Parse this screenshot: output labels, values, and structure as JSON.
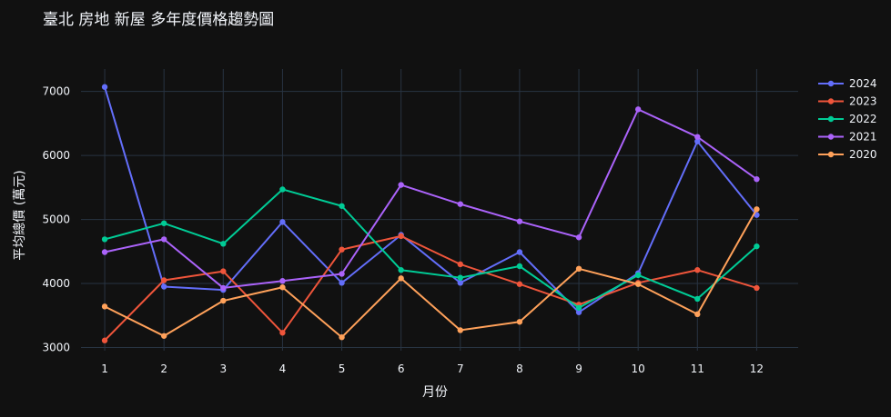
{
  "chart_data": {
    "type": "line",
    "title": "臺北 房地 新屋 多年度價格趨勢圖",
    "xlabel": "月份",
    "ylabel": "平均總價 (萬元)",
    "x": [
      1,
      2,
      3,
      4,
      5,
      6,
      7,
      8,
      9,
      10,
      11,
      12
    ],
    "xlim": [
      0.6,
      12.7
    ],
    "ylim": [
      2950,
      7350
    ],
    "yticks": [
      3000,
      4000,
      5000,
      6000,
      7000
    ],
    "grid": true,
    "legend_position": "top-right",
    "background": "#111111",
    "series": [
      {
        "name": "2024",
        "color": "#636efa",
        "values": [
          7070,
          3950,
          3900,
          4960,
          4010,
          4760,
          4010,
          4490,
          3550,
          4160,
          6220,
          5070
        ]
      },
      {
        "name": "2023",
        "color": "#ef553b",
        "values": [
          3110,
          4050,
          4190,
          3230,
          4530,
          4740,
          4300,
          3990,
          3670,
          4010,
          4210,
          3930
        ]
      },
      {
        "name": "2022",
        "color": "#00cc96",
        "values": [
          4690,
          4940,
          4620,
          5470,
          5210,
          4210,
          4090,
          4270,
          3620,
          4130,
          3760,
          4580
        ]
      },
      {
        "name": "2021",
        "color": "#ab63fa",
        "values": [
          4490,
          4690,
          3930,
          4040,
          4150,
          5540,
          5240,
          4970,
          4720,
          6720,
          6290,
          5630
        ]
      },
      {
        "name": "2020",
        "color": "#ffa15a",
        "values": [
          3640,
          3180,
          3730,
          3940,
          3160,
          4080,
          3270,
          3400,
          4230,
          3990,
          3520,
          5160
        ]
      }
    ]
  }
}
